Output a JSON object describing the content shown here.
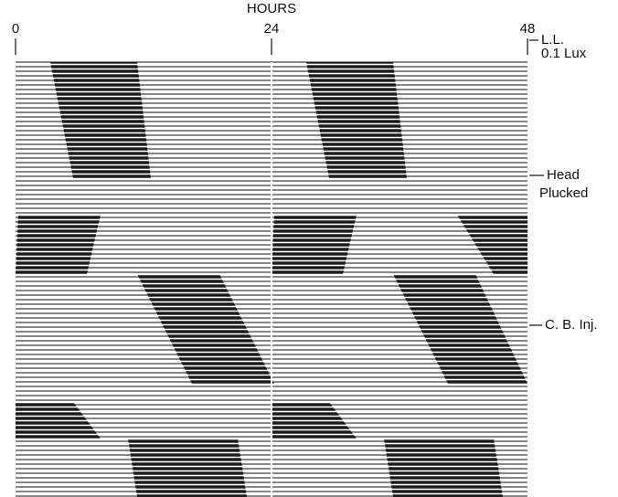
{
  "chart_data": {
    "type": "actogram",
    "x_label": "HOURS",
    "xlim": [
      0,
      48
    ],
    "xticks": [
      0,
      24,
      48
    ],
    "annotations": [
      "L.L.",
      "0.1 Lux",
      "Head",
      "Plucked",
      "C. B. Inj."
    ]
  }
}
